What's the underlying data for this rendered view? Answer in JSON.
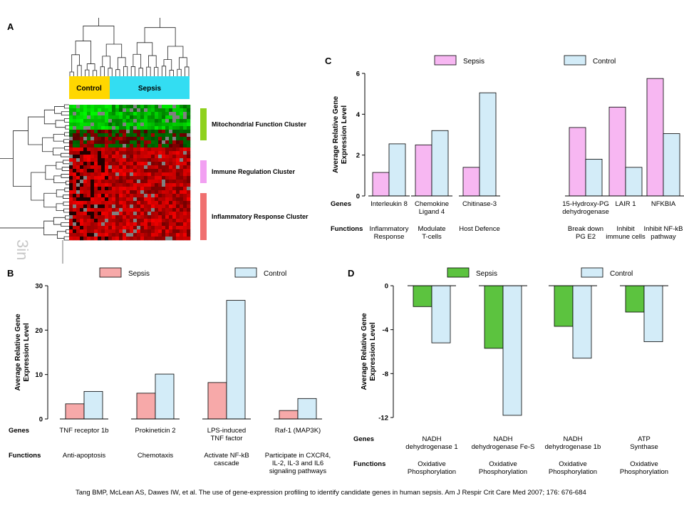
{
  "panels": {
    "a": "A",
    "b": "B",
    "c": "C",
    "d": "D"
  },
  "heatmap": {
    "groups": [
      "Control",
      "Sepsis"
    ],
    "clusters": [
      {
        "label": "Mitochondrial Function Cluster",
        "color": "#8fd11e"
      },
      {
        "label": "Immune Regulation Cluster",
        "color": "#f2a0f2"
      },
      {
        "label": "Inflammatory Response  Cluster",
        "color": "#f07070"
      }
    ],
    "colors": {
      "control": "#ffd700",
      "sepsis": "#33ddf2"
    }
  },
  "row_labels": {
    "genes": "Genes",
    "functions": "Functions"
  },
  "citation": "Tang BMP, McLean AS, Dawes IW, et al. The use of gene-expression profiling to identify candidate genes in human sepsis. Am J Respir Crit Care Med 2007; 176: 676-684",
  "watermark": "3in",
  "chart_data": [
    {
      "panel": "B",
      "type": "bar",
      "ylabel": [
        "Average Relative Gene",
        "Expression Level"
      ],
      "ylim": [
        0,
        30
      ],
      "yticks": [
        0,
        10,
        20,
        30
      ],
      "categories": [
        {
          "gene": [
            "TNF receptor 1b"
          ],
          "function": [
            "Anti-apoptosis"
          ]
        },
        {
          "gene": [
            "Prokineticin 2"
          ],
          "function": [
            "Chemotaxis"
          ]
        },
        {
          "gene": [
            "LPS-induced",
            "TNF factor"
          ],
          "function": [
            "Activate NF-kB",
            "cascade"
          ]
        },
        {
          "gene": [
            "Raf-1 (MAP3K)"
          ],
          "function": [
            "Participate in CXCR4,",
            "IL-2, IL-3 and IL6",
            "signaling pathways"
          ]
        }
      ],
      "series": [
        {
          "name": "Sepsis",
          "color": "#f7a9a9",
          "values": [
            3.4,
            5.8,
            8.2,
            1.9
          ]
        },
        {
          "name": "Control",
          "color": "#d3ecf8",
          "values": [
            6.2,
            10.1,
            26.7,
            4.6
          ]
        }
      ]
    },
    {
      "panel": "C",
      "type": "bar",
      "ylabel": [
        "Average Relative Gene",
        "Expression Level"
      ],
      "ylim": [
        0,
        6
      ],
      "yticks": [
        0,
        2,
        4,
        6
      ],
      "categories": [
        {
          "gene": [
            "Interleukin 8"
          ],
          "function": [
            "Inflammatory",
            "Response"
          ]
        },
        {
          "gene": [
            "Chemokine",
            "Ligand 4"
          ],
          "function": [
            "Modulate",
            "T-cells"
          ]
        },
        {
          "gene": [
            "Chitinase-3"
          ],
          "function": [
            "Host Defence"
          ]
        },
        {
          "gene": [
            "15-Hydroxy-PG",
            "dehydrogenase"
          ],
          "function": [
            "Break down",
            "PG E2"
          ]
        },
        {
          "gene": [
            "LAIR 1"
          ],
          "function": [
            "Inhibit",
            "immune cells"
          ]
        },
        {
          "gene": [
            "NFKBIA"
          ],
          "function": [
            "Inhibit NF-kB",
            "pathway"
          ]
        }
      ],
      "series": [
        {
          "name": "Sepsis",
          "color": "#f7b7f2",
          "values": [
            1.15,
            2.5,
            1.4,
            3.35,
            4.35,
            5.75
          ]
        },
        {
          "name": "Control",
          "color": "#d3ecf8",
          "values": [
            2.55,
            3.2,
            5.05,
            1.8,
            1.4,
            3.05
          ]
        }
      ]
    },
    {
      "panel": "D",
      "type": "bar",
      "ylabel": [
        "Average Relative Gene",
        "Expression Level"
      ],
      "ylim": [
        -12,
        0
      ],
      "yticks": [
        0,
        -4,
        -8,
        -12
      ],
      "categories": [
        {
          "gene": [
            "NADH",
            "dehydrogenase 1"
          ],
          "function": [
            "Oxidative",
            "Phosphorylation"
          ]
        },
        {
          "gene": [
            "NADH",
            "dehydrogenase Fe-S"
          ],
          "function": [
            "Oxidative",
            "Phosphorylation"
          ]
        },
        {
          "gene": [
            "NADH",
            "dehydrogenase 1b"
          ],
          "function": [
            "Oxidative",
            "Phosphorylation"
          ]
        },
        {
          "gene": [
            "ATP",
            "Synthase"
          ],
          "function": [
            "Oxidative",
            "Phosphorylation"
          ]
        }
      ],
      "series": [
        {
          "name": "Sepsis",
          "color": "#5cc33f",
          "values": [
            -1.9,
            -5.7,
            -3.7,
            -2.4
          ]
        },
        {
          "name": "Control",
          "color": "#d3ecf8",
          "values": [
            -5.2,
            -11.8,
            -6.6,
            -5.1
          ]
        }
      ]
    }
  ]
}
